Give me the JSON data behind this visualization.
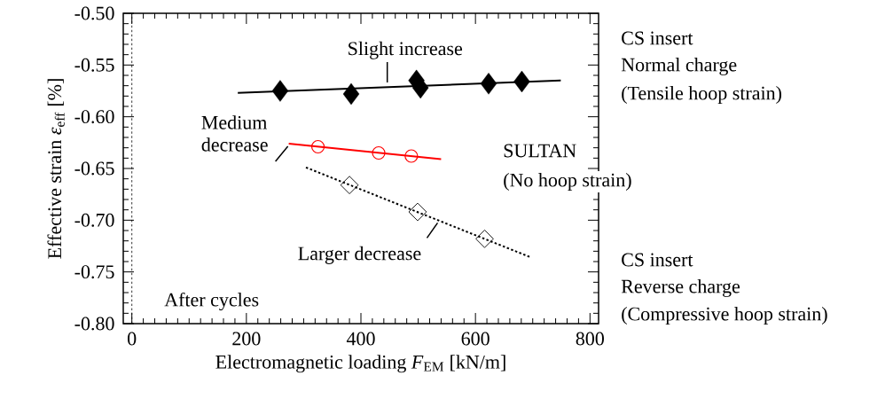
{
  "chart_data": {
    "type": "scatter",
    "xlabel": "Electromagnetic loading *F*$_{EM}$ [kN/m]",
    "ylabel": "Effective strain *ε*$_{eff}$ [%]",
    "xlim": [
      -15,
      815
    ],
    "ylim": [
      -0.8,
      -0.5
    ],
    "xticks": [
      0,
      200,
      400,
      600,
      800
    ],
    "yticks": [
      {
        "value": -0.8,
        "label": "-0.80"
      },
      {
        "value": -0.75,
        "label": "-0.75"
      },
      {
        "value": -0.7,
        "label": "-0.70"
      },
      {
        "value": -0.65,
        "label": "-0.65"
      },
      {
        "value": -0.6,
        "label": "-0.60"
      },
      {
        "value": -0.55,
        "label": "-0.55"
      },
      {
        "value": -0.5,
        "label": "-0.50"
      }
    ],
    "grid": false,
    "series": [
      {
        "color": "#000000",
        "marker": "diamond",
        "x": [
          259,
          383,
          497,
          504,
          623,
          681
        ],
        "values": [
          -0.575,
          -0.578,
          -0.565,
          -0.572,
          -0.568,
          -0.566
        ]
      },
      {
        "type": "line",
        "color": "#000000",
        "marker": "none",
        "line_style": "solid",
        "x": [
          185,
          749
        ],
        "values": [
          -0.577,
          -0.565
        ]
      },
      {
        "color": "#ff0000",
        "marker": "circle",
        "x": [
          325,
          431,
          488
        ],
        "values": [
          -0.629,
          -0.635,
          -0.638
        ]
      },
      {
        "type": "line",
        "color": "#ff0000",
        "marker": "none",
        "line_style": "solid",
        "x": [
          274,
          540
        ],
        "values": [
          -0.626,
          -0.641
        ]
      },
      {
        "color": "#000000",
        "marker": "diamond",
        "x": [
          380,
          499,
          616
        ],
        "values": [
          -0.666,
          -0.692,
          -0.718
        ]
      },
      {
        "type": "line",
        "color": "#000000",
        "marker": "none",
        "line_style": "dotted",
        "x": [
          304,
          697
        ],
        "values": [
          -0.649,
          -0.736
        ]
      }
    ],
    "ref_lines": [
      {
        "axis": "x",
        "value": 0,
        "line_style": "dotted",
        "color": "#000000"
      }
    ],
    "annotations": [
      {
        "text": "Slight increase",
        "x": 446,
        "y": -0.5677
      },
      {
        "text": "Medium decrease",
        "x": 274,
        "y": -0.626
      },
      {
        "text": "Larger decrease",
        "x": 537,
        "y": -0.7
      },
      "After cycles",
      "CS insert",
      "Normal charge",
      "(Tensile hoop strain)",
      "SULTAN",
      "(No hoop strain)",
      "CS insert",
      "Reverse charge",
      "(Compressive hoop strain)"
    ]
  }
}
